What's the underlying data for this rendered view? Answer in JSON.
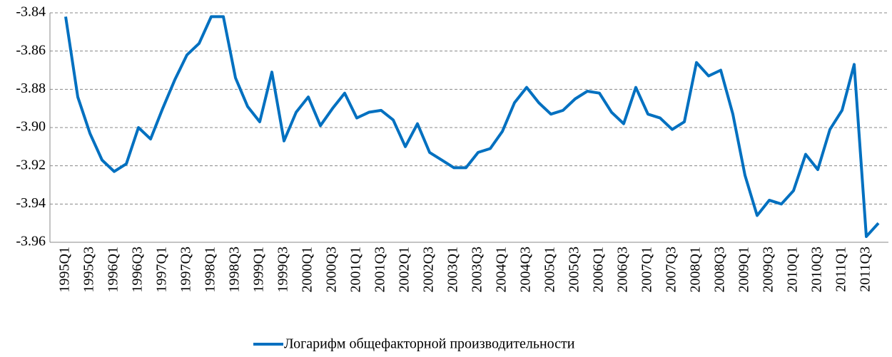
{
  "chart_data": {
    "type": "line",
    "categories": [
      "1995Q1",
      null,
      "1995Q3",
      null,
      "1996Q1",
      null,
      "1996Q3",
      null,
      "1997Q1",
      null,
      "1997Q3",
      null,
      "1998Q1",
      null,
      "1998Q3",
      null,
      "1999Q1",
      null,
      "1999Q3",
      null,
      "2000Q1",
      null,
      "2000Q3",
      null,
      "2001Q1",
      null,
      "2001Q3",
      null,
      "2002Q1",
      null,
      "2002Q3",
      null,
      "2003Q1",
      null,
      "2003Q3",
      null,
      "2004Q1",
      null,
      "2004Q3",
      null,
      "2005Q1",
      null,
      "2005Q3",
      null,
      "2006Q1",
      null,
      "2006Q3",
      null,
      "2007Q1",
      null,
      "2007Q3",
      null,
      "2008Q1",
      null,
      "2008Q3",
      null,
      "2009Q1",
      null,
      "2009Q3",
      null,
      "2010Q1",
      null,
      "2010Q3",
      null,
      "2011Q1",
      null,
      "2011Q3",
      null
    ],
    "series": [
      {
        "name": "Логарифм общефакторной производительности",
        "color": "#0070c0",
        "values": [
          -3.842,
          -3.884,
          -3.903,
          -3.917,
          -3.923,
          -3.919,
          -3.9,
          -3.906,
          -3.89,
          -3.875,
          -3.862,
          -3.856,
          -3.842,
          -3.842,
          -3.874,
          -3.889,
          -3.897,
          -3.871,
          -3.907,
          -3.892,
          -3.884,
          -3.899,
          -3.89,
          -3.882,
          -3.895,
          -3.892,
          -3.891,
          -3.896,
          -3.91,
          -3.898,
          -3.913,
          -3.917,
          -3.921,
          -3.921,
          -3.913,
          -3.911,
          -3.902,
          -3.887,
          -3.879,
          -3.887,
          -3.893,
          -3.891,
          -3.885,
          -3.881,
          -3.882,
          -3.892,
          -3.898,
          -3.879,
          -3.893,
          -3.895,
          -3.901,
          -3.897,
          -3.866,
          -3.873,
          -3.87,
          -3.893,
          -3.925,
          -3.946,
          -3.938,
          -3.94,
          -3.933,
          -3.914,
          -3.922,
          -3.901,
          -3.891,
          -3.867,
          -3.957,
          -3.95
        ]
      }
    ],
    "ylim": [
      -3.96,
      -3.84
    ],
    "yticks": [
      -3.84,
      -3.86,
      -3.88,
      {
        "value": -3.9,
        "label": "-3.90"
      },
      -3.92,
      -3.94,
      -3.96
    ],
    "grid": true
  }
}
